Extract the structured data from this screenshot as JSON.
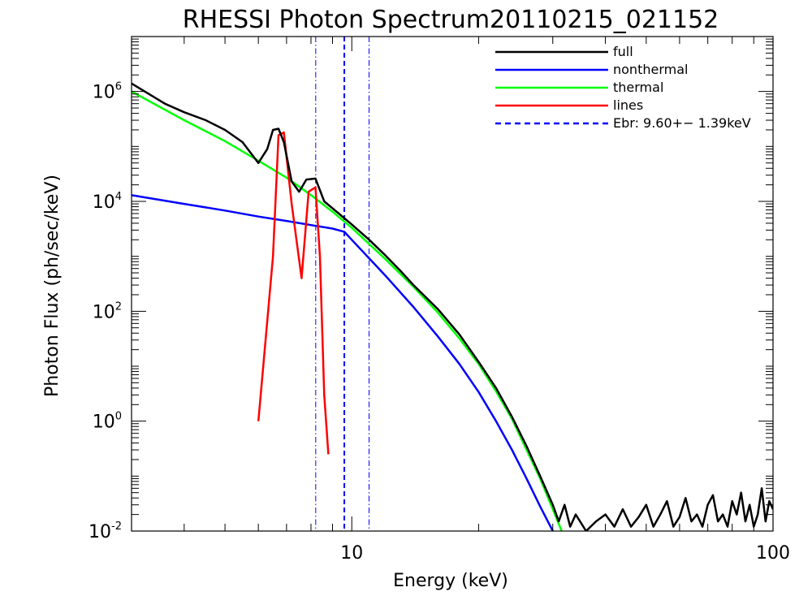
{
  "chart_data": {
    "type": "line",
    "title": "RHESSI Photon Spectrum20110215_021152",
    "xlabel": "Energy (keV)",
    "ylabel": "Photon Flux (ph/sec/keV)",
    "xscale": "log",
    "yscale": "log",
    "xlim": [
      3.0,
      100
    ],
    "ylim": [
      0.01,
      10000000
    ],
    "xticks": [
      10,
      100
    ],
    "xtick_labels": [
      "10",
      "100"
    ],
    "yticks": [
      0.01,
      1,
      100,
      10000,
      1000000
    ],
    "ytick_labels": [
      {
        "base": "10",
        "exp": "-2"
      },
      {
        "base": "10",
        "exp": "0"
      },
      {
        "base": "10",
        "exp": "2"
      },
      {
        "base": "10",
        "exp": "4"
      },
      {
        "base": "10",
        "exp": "6"
      }
    ],
    "legend_position": "top-right",
    "legend_entries": [
      {
        "label": "full",
        "color": "#000000",
        "dash": "solid"
      },
      {
        "label": "nonthermal",
        "color": "#0000ff",
        "dash": "solid"
      },
      {
        "label": "thermal",
        "color": "#00ff00",
        "dash": "solid"
      },
      {
        "label": "lines",
        "color": "#ff0000",
        "dash": "solid"
      },
      {
        "label": "Ebr:   9.60+−  1.39keV",
        "color": "#0000ff",
        "dash": "dashed"
      }
    ],
    "series": [
      {
        "color": "#00ff00",
        "x": [
          3.0,
          4.0,
          5.0,
          6.0,
          7.0,
          8.0,
          9.0,
          10.0,
          12.0,
          14.0,
          16.0,
          18.0,
          20.0,
          22.0,
          24.0,
          26.0,
          28.0,
          30.0,
          31.5
        ],
        "y": [
          1000000,
          300000,
          125000,
          55000,
          27000,
          13000,
          6500,
          3300,
          900,
          280,
          95,
          32,
          11,
          3.5,
          1.1,
          0.3,
          0.09,
          0.025,
          0.01
        ]
      },
      {
        "color": "#0000ff",
        "x": [
          3.0,
          4.0,
          5.0,
          6.0,
          7.0,
          8.0,
          9.0,
          9.6,
          10.0,
          12.0,
          14.0,
          16.0,
          18.0,
          20.0,
          22.0,
          24.0,
          26.0,
          28.0,
          30.0
        ],
        "y": [
          13000,
          9000,
          6800,
          5300,
          4400,
          3700,
          3200,
          2800,
          2000,
          450,
          120,
          35,
          11,
          3.4,
          1.0,
          0.3,
          0.09,
          0.028,
          0.01
        ]
      },
      {
        "color": "#ff0000",
        "x": [
          6.0,
          6.5,
          6.7,
          6.9,
          7.2,
          7.6,
          7.9,
          8.2,
          8.4,
          8.6,
          8.8
        ],
        "y": [
          1,
          1000,
          160000,
          180000,
          9000,
          400,
          15000,
          18000,
          1000,
          3,
          0.25
        ]
      },
      {
        "color": "#000000",
        "x": [
          3.0,
          3.3,
          3.6,
          4.0,
          4.5,
          5.0,
          5.5,
          6.0,
          6.3,
          6.5,
          6.7,
          6.9,
          7.2,
          7.5,
          7.8,
          8.2,
          8.6,
          9.0,
          10.0,
          11.0,
          12.0,
          13.0,
          14.0,
          16.0,
          18.0,
          20.0,
          22.0,
          24.0,
          26.0,
          28.0,
          30.0,
          31.0,
          32.0,
          33.0,
          34.0,
          36.0,
          38.0,
          40.0,
          42.0,
          44.0,
          46.0,
          48.0,
          50.0,
          52.0,
          54.0,
          56.0,
          58.0,
          60.0,
          62.0,
          64.0,
          66.0,
          68.0,
          70.0,
          72.0,
          74.0,
          76.0,
          78.0,
          80.0,
          82.0,
          84.0,
          86.0,
          88.0,
          90.0,
          92.0,
          94.0,
          96.0,
          98.0,
          100.0
        ],
        "y": [
          1400000,
          900000,
          600000,
          420000,
          300000,
          200000,
          120000,
          50000,
          90000,
          200000,
          210000,
          120000,
          23000,
          15000,
          25000,
          26000,
          10000,
          7500,
          3800,
          2000,
          1050,
          560,
          300,
          110,
          38,
          12,
          4,
          1.2,
          0.35,
          0.1,
          0.03,
          0.015,
          0.03,
          0.012,
          0.02,
          0.01,
          0.015,
          0.02,
          0.012,
          0.025,
          0.012,
          0.018,
          0.03,
          0.012,
          0.02,
          0.035,
          0.012,
          0.018,
          0.04,
          0.015,
          0.02,
          0.012,
          0.03,
          0.045,
          0.015,
          0.02,
          0.012,
          0.035,
          0.02,
          0.05,
          0.015,
          0.03,
          0.012,
          0.02,
          0.06,
          0.015,
          0.035,
          0.025
        ]
      }
    ],
    "vertical_lines": [
      {
        "x": 8.21,
        "color": "#0000ff",
        "style": "dashdot"
      },
      {
        "x": 9.6,
        "color": "#0000ff",
        "style": "dashed"
      },
      {
        "x": 10.99,
        "color": "#0000ff",
        "style": "dashdot"
      }
    ]
  }
}
